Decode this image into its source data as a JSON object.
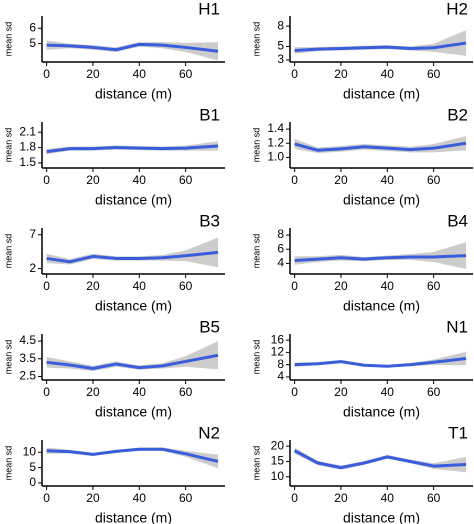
{
  "chart_data": [
    {
      "type": "line",
      "title": "H1",
      "ylabel": "mean sd",
      "xlabel": "distance (m)",
      "color": "#3a5ddb",
      "band_color": "#cccccc",
      "x": [
        0,
        10,
        20,
        30,
        40,
        50,
        60,
        74
      ],
      "values": [
        4.9,
        4.85,
        4.75,
        4.6,
        4.95,
        4.9,
        4.75,
        4.5
      ],
      "lower": [
        4.6,
        4.7,
        4.6,
        4.45,
        4.8,
        4.7,
        4.45,
        3.9
      ],
      "upper": [
        5.2,
        5.0,
        4.9,
        4.75,
        5.1,
        5.1,
        5.05,
        5.1
      ],
      "xlim": [
        -2,
        77
      ],
      "xticks": [
        0,
        20,
        40,
        60
      ],
      "ylim": [
        3.8,
        6.8
      ],
      "yticks": [
        5,
        6
      ]
    },
    {
      "type": "line",
      "title": "H2",
      "ylabel": "mean sd",
      "xlabel": "distance (m)",
      "color": "#3a5ddb",
      "band_color": "#cccccc",
      "x": [
        0,
        10,
        20,
        30,
        40,
        50,
        60,
        74
      ],
      "values": [
        4.4,
        4.6,
        4.7,
        4.8,
        4.9,
        4.7,
        4.8,
        5.5
      ],
      "lower": [
        3.9,
        4.3,
        4.4,
        4.5,
        4.6,
        4.4,
        4.2,
        3.6
      ],
      "upper": [
        4.9,
        4.9,
        5.0,
        5.1,
        5.2,
        5.0,
        5.4,
        7.4
      ],
      "xlim": [
        -2,
        77
      ],
      "xticks": [
        0,
        20,
        40,
        60
      ],
      "ylim": [
        2.7,
        9.5
      ],
      "yticks": [
        3,
        5,
        8
      ]
    },
    {
      "type": "line",
      "title": "B1",
      "ylabel": "mean sd",
      "xlabel": "distance (m)",
      "color": "#3a5ddb",
      "band_color": "#cccccc",
      "x": [
        0,
        10,
        20,
        30,
        40,
        50,
        60,
        74
      ],
      "values": [
        1.72,
        1.78,
        1.78,
        1.8,
        1.79,
        1.78,
        1.79,
        1.83
      ],
      "lower": [
        1.67,
        1.74,
        1.74,
        1.76,
        1.75,
        1.74,
        1.74,
        1.74
      ],
      "upper": [
        1.77,
        1.82,
        1.82,
        1.84,
        1.83,
        1.82,
        1.84,
        1.92
      ],
      "xlim": [
        -2,
        77
      ],
      "xticks": [
        0,
        20,
        40,
        60
      ],
      "ylim": [
        1.4,
        2.3
      ],
      "yticks": [
        1.5,
        1.8,
        2.1
      ]
    },
    {
      "type": "line",
      "title": "B2",
      "ylabel": "mean sd",
      "xlabel": "distance (m)",
      "color": "#3a5ddb",
      "band_color": "#cccccc",
      "x": [
        0,
        10,
        20,
        30,
        40,
        50,
        60,
        74
      ],
      "values": [
        1.19,
        1.1,
        1.12,
        1.15,
        1.13,
        1.11,
        1.13,
        1.2
      ],
      "lower": [
        1.12,
        1.06,
        1.08,
        1.11,
        1.09,
        1.07,
        1.07,
        1.1
      ],
      "upper": [
        1.26,
        1.14,
        1.16,
        1.19,
        1.17,
        1.15,
        1.19,
        1.3
      ],
      "xlim": [
        -2,
        77
      ],
      "xticks": [
        0,
        20,
        40,
        60
      ],
      "ylim": [
        0.85,
        1.5
      ],
      "yticks": [
        {
          "value": 1,
          "label": "1.0"
        },
        1.2,
        1.4
      ]
    },
    {
      "type": "line",
      "title": "B3",
      "ylabel": "mean sd",
      "xlabel": "distance (m)",
      "color": "#3a5ddb",
      "band_color": "#cccccc",
      "x": [
        0,
        10,
        20,
        30,
        40,
        50,
        60,
        74
      ],
      "values": [
        3.5,
        3.0,
        3.8,
        3.5,
        3.5,
        3.6,
        3.9,
        4.4
      ],
      "lower": [
        2.8,
        2.6,
        3.4,
        3.2,
        3.2,
        3.2,
        3.1,
        2.2
      ],
      "upper": [
        4.2,
        3.4,
        4.2,
        3.8,
        3.8,
        4.0,
        4.7,
        6.6
      ],
      "xlim": [
        -2,
        77
      ],
      "xticks": [
        0,
        20,
        40,
        60
      ],
      "ylim": [
        1.2,
        8
      ],
      "yticks": [
        2,
        7
      ]
    },
    {
      "type": "line",
      "title": "B4",
      "ylabel": "mean sd",
      "xlabel": "distance (m)",
      "color": "#3a5ddb",
      "band_color": "#cccccc",
      "x": [
        0,
        10,
        20,
        30,
        40,
        50,
        60,
        74
      ],
      "values": [
        4.4,
        4.6,
        4.8,
        4.6,
        4.8,
        4.9,
        4.9,
        5.1
      ],
      "lower": [
        3.8,
        4.2,
        4.4,
        4.3,
        4.5,
        4.5,
        4.2,
        3.2
      ],
      "upper": [
        5.0,
        5.0,
        5.2,
        4.9,
        5.1,
        5.3,
        5.6,
        7.0
      ],
      "xlim": [
        -2,
        77
      ],
      "xticks": [
        0,
        20,
        40,
        60
      ],
      "ylim": [
        2.5,
        9
      ],
      "yticks": [
        4,
        6,
        8
      ]
    },
    {
      "type": "line",
      "title": "B5",
      "ylabel": "mean sd",
      "xlabel": "distance (m)",
      "color": "#3a5ddb",
      "band_color": "#cccccc",
      "x": [
        0,
        10,
        20,
        30,
        40,
        50,
        60,
        74
      ],
      "values": [
        3.3,
        3.15,
        2.95,
        3.2,
        3.0,
        3.1,
        3.35,
        3.7
      ],
      "lower": [
        3.0,
        2.95,
        2.8,
        3.05,
        2.88,
        2.95,
        3.05,
        2.9
      ],
      "upper": [
        3.6,
        3.35,
        3.1,
        3.35,
        3.12,
        3.25,
        3.65,
        4.5
      ],
      "xlim": [
        -2,
        77
      ],
      "xticks": [
        0,
        20,
        40,
        60
      ],
      "ylim": [
        2.3,
        4.9
      ],
      "yticks": [
        2.5,
        3.5,
        4.5
      ]
    },
    {
      "type": "line",
      "title": "N1",
      "ylabel": "mean sd",
      "xlabel": "distance (m)",
      "color": "#3a5ddb",
      "band_color": "#cccccc",
      "x": [
        0,
        10,
        20,
        30,
        40,
        50,
        60,
        74
      ],
      "values": [
        8,
        8.3,
        9,
        7.8,
        7.5,
        8,
        8.8,
        10
      ],
      "lower": [
        7.3,
        7.8,
        8.5,
        7.4,
        7.1,
        7.5,
        7.9,
        7.8
      ],
      "upper": [
        8.7,
        8.8,
        9.5,
        8.2,
        7.9,
        8.5,
        9.7,
        12.2
      ],
      "xlim": [
        -2,
        77
      ],
      "xticks": [
        0,
        20,
        40,
        60
      ],
      "ylim": [
        3,
        18
      ],
      "yticks": [
        4,
        8,
        12,
        16
      ]
    },
    {
      "type": "line",
      "title": "N2",
      "ylabel": "mean sd",
      "xlabel": "distance (m)",
      "color": "#3a5ddb",
      "band_color": "#cccccc",
      "x": [
        0,
        10,
        20,
        30,
        40,
        50,
        60,
        74
      ],
      "values": [
        10.5,
        10.2,
        9.3,
        10.3,
        11,
        11,
        9.5,
        7
      ],
      "lower": [
        9.5,
        9.6,
        8.8,
        9.8,
        10.5,
        10.4,
        8.5,
        4.8
      ],
      "upper": [
        11.5,
        10.8,
        9.8,
        10.8,
        11.5,
        11.6,
        10.5,
        9.2
      ],
      "xlim": [
        -2,
        77
      ],
      "xticks": [
        0,
        20,
        40,
        60
      ],
      "ylim": [
        -1,
        14
      ],
      "yticks": [
        0,
        5,
        10
      ]
    },
    {
      "type": "line",
      "title": "T1",
      "ylabel": "mean sd",
      "xlabel": "distance (m)",
      "color": "#3a5ddb",
      "band_color": "#cccccc",
      "x": [
        0,
        10,
        20,
        30,
        40,
        50,
        60,
        74
      ],
      "values": [
        18.5,
        14.5,
        13,
        14.5,
        16.5,
        15,
        13.5,
        14
      ],
      "lower": [
        17.5,
        13.8,
        12.3,
        13.9,
        15.9,
        14.4,
        12.6,
        11.5
      ],
      "upper": [
        19.5,
        15.2,
        13.7,
        15.1,
        17.1,
        15.6,
        14.4,
        16.5
      ],
      "xlim": [
        -2,
        77
      ],
      "xticks": [
        0,
        20,
        40,
        60
      ],
      "ylim": [
        7,
        22
      ],
      "yticks": [
        10,
        15,
        20
      ]
    }
  ]
}
